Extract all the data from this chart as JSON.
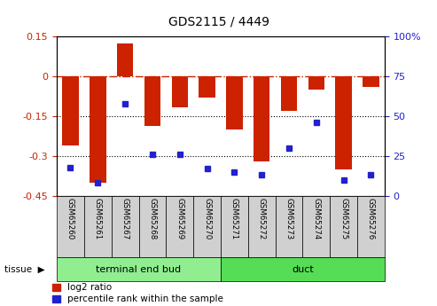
{
  "title": "GDS2115 / 4449",
  "samples": [
    "GSM65260",
    "GSM65261",
    "GSM65267",
    "GSM65268",
    "GSM65269",
    "GSM65270",
    "GSM65271",
    "GSM65272",
    "GSM65273",
    "GSM65274",
    "GSM65275",
    "GSM65276"
  ],
  "log2_ratio": [
    -0.26,
    -0.4,
    0.125,
    -0.185,
    -0.115,
    -0.08,
    -0.2,
    -0.32,
    -0.13,
    -0.05,
    -0.35,
    -0.04
  ],
  "percentile": [
    18,
    8,
    58,
    26,
    26,
    17,
    15,
    13,
    30,
    46,
    10,
    13
  ],
  "tissue_groups": [
    {
      "label": "terminal end bud",
      "start": 0,
      "end": 6,
      "color": "#90ee90"
    },
    {
      "label": "duct",
      "start": 6,
      "end": 12,
      "color": "#55dd55"
    }
  ],
  "bar_color": "#cc2200",
  "dot_color": "#2222cc",
  "ylim_left": [
    -0.45,
    0.15
  ],
  "ylim_right": [
    0,
    100
  ],
  "yticks_left": [
    -0.45,
    -0.3,
    -0.15,
    0.0,
    0.15
  ],
  "yticks_right": [
    0,
    25,
    50,
    75,
    100
  ],
  "hline_y": 0.0,
  "dotted_lines": [
    -0.15,
    -0.3
  ],
  "bar_color_hex": "#cc2200",
  "dot_color_hex": "#2222cc",
  "bar_width": 0.6,
  "legend_log2_label": "log2 ratio",
  "legend_pct_label": "percentile rank within the sample",
  "tissue_label": "tissue"
}
